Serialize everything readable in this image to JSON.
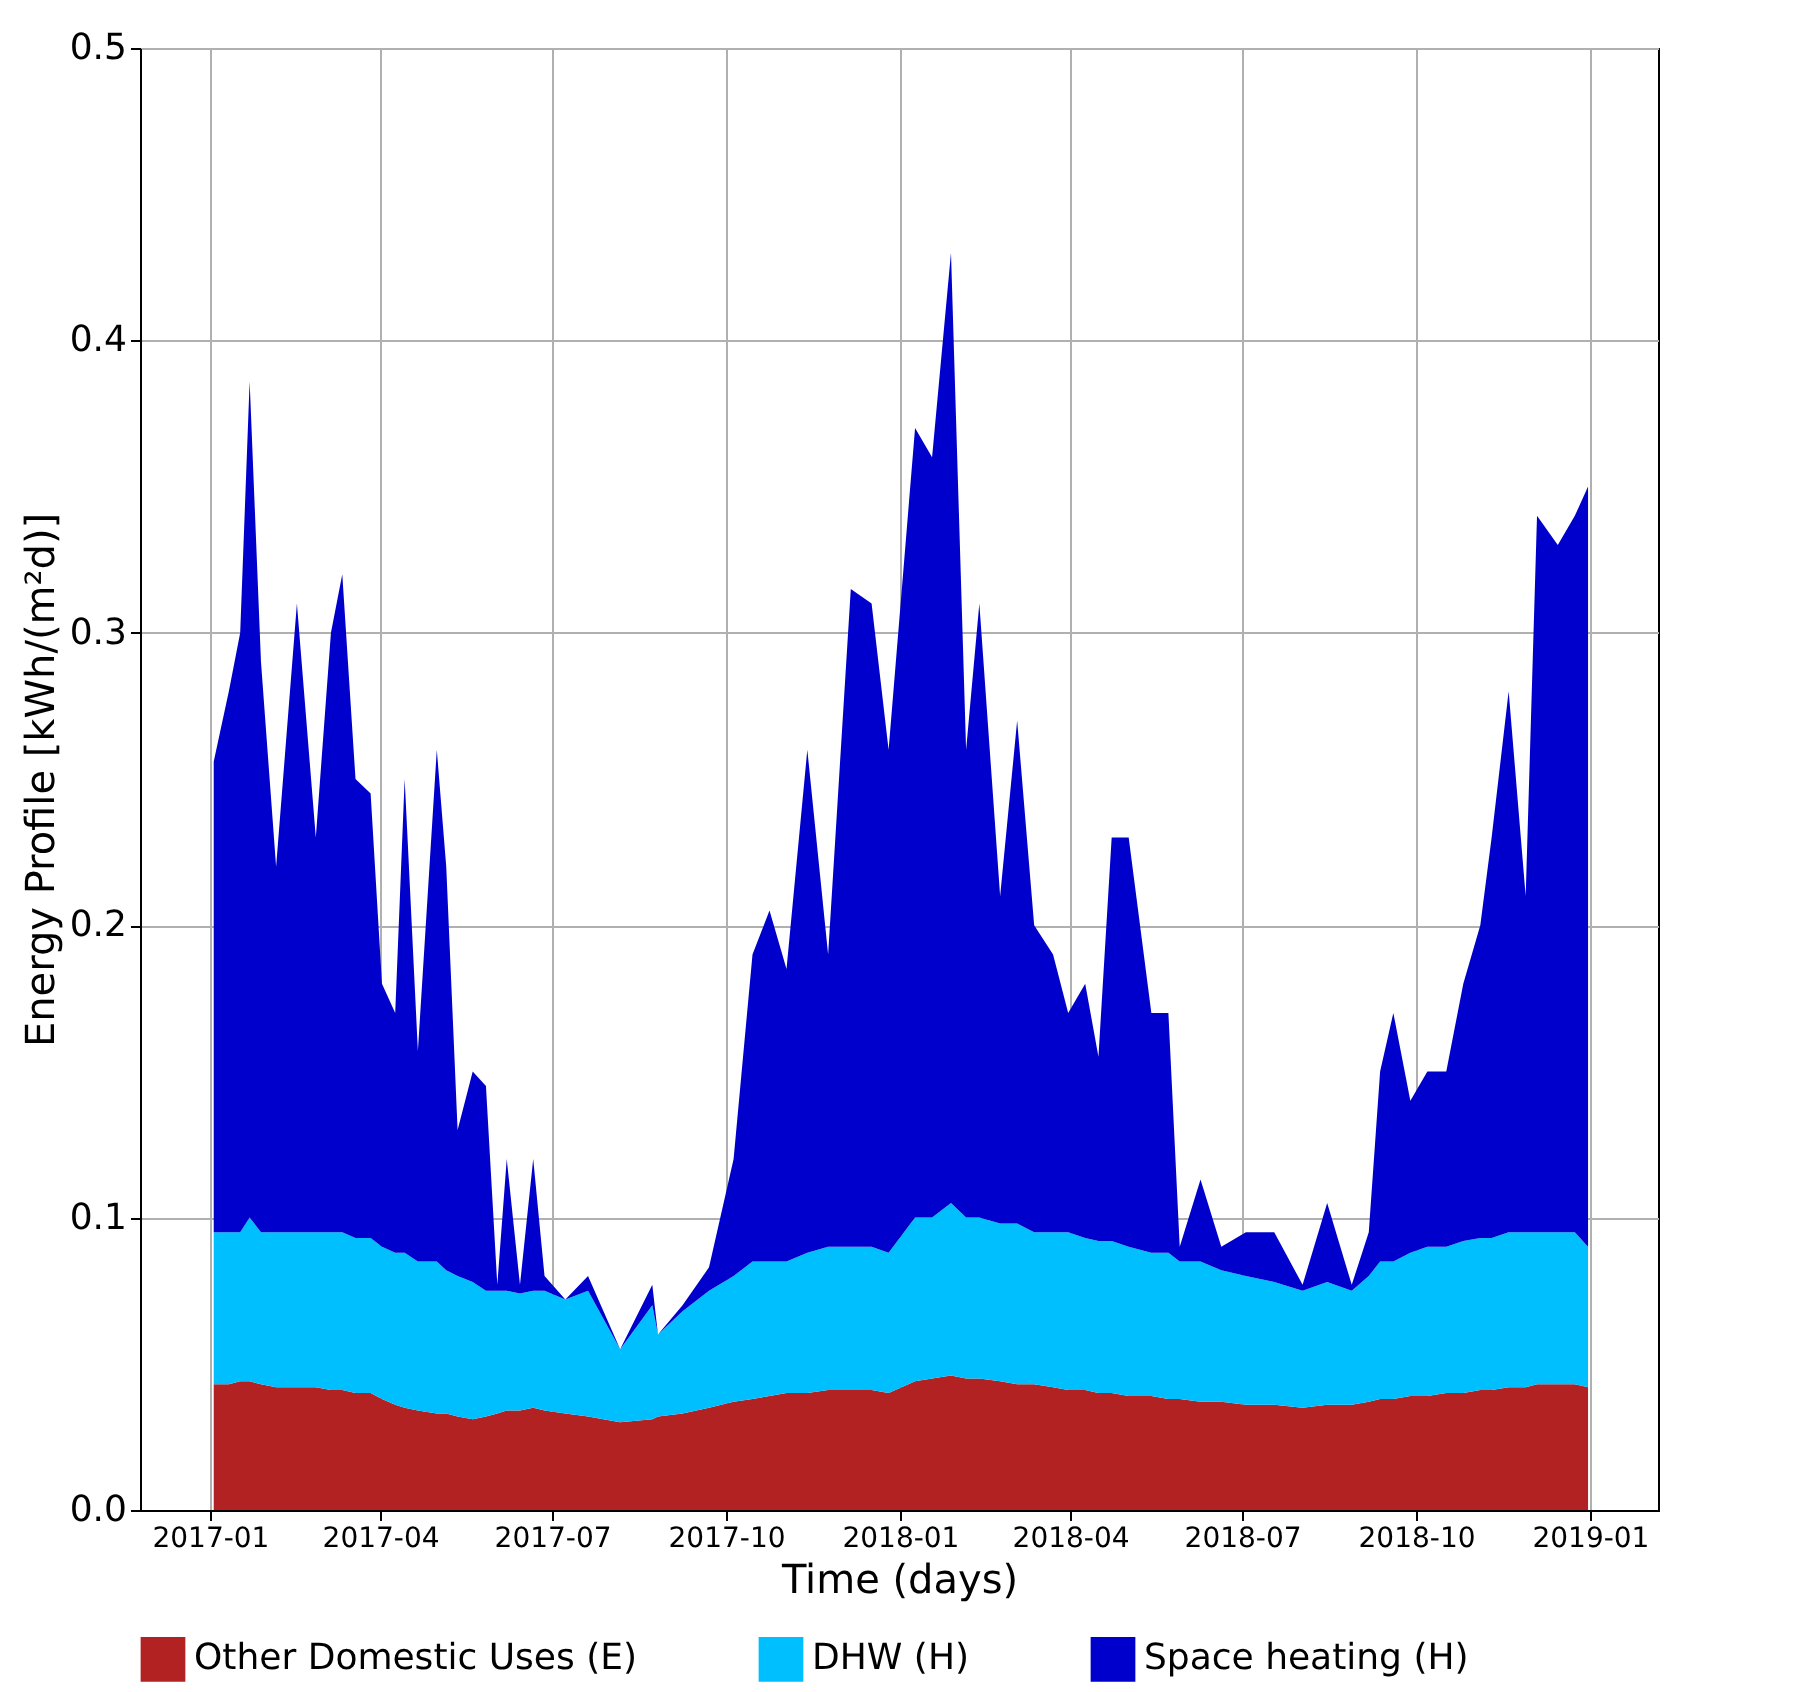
{
  "chart_data": {
    "type": "area",
    "stacked": true,
    "xlabel": "Time (days)",
    "ylabel": "Energy Profile [kWh/(m²d)]",
    "x": [
      "2017-01-03",
      "2017-01-11",
      "2017-01-17",
      "2017-01-22",
      "2017-01-28",
      "2017-02-05",
      "2017-02-16",
      "2017-02-26",
      "2017-03-06",
      "2017-03-12",
      "2017-03-19",
      "2017-03-27",
      "2017-04-02",
      "2017-04-09",
      "2017-04-14",
      "2017-04-21",
      "2017-05-01",
      "2017-05-06",
      "2017-05-12",
      "2017-05-20",
      "2017-05-27",
      "2017-06-02",
      "2017-06-07",
      "2017-06-14",
      "2017-06-21",
      "2017-06-27",
      "2017-07-08",
      "2017-07-20",
      "2017-08-06",
      "2017-08-23",
      "2017-08-26",
      "2017-09-08",
      "2017-09-22",
      "2017-10-05",
      "2017-10-15",
      "2017-10-24",
      "2017-11-02",
      "2017-11-13",
      "2017-11-24",
      "2017-12-06",
      "2017-12-17",
      "2017-12-26",
      "2018-01-09",
      "2018-01-18",
      "2018-01-28",
      "2018-02-05",
      "2018-02-12",
      "2018-02-23",
      "2018-03-04",
      "2018-03-13",
      "2018-03-23",
      "2018-03-31",
      "2018-04-09",
      "2018-04-16",
      "2018-04-23",
      "2018-05-02",
      "2018-05-14",
      "2018-05-23",
      "2018-05-29",
      "2018-06-09",
      "2018-06-20",
      "2018-07-03",
      "2018-07-18",
      "2018-08-02",
      "2018-08-15",
      "2018-08-28",
      "2018-09-06",
      "2018-09-12",
      "2018-09-19",
      "2018-09-28",
      "2018-10-07",
      "2018-10-17",
      "2018-10-26",
      "2018-11-04",
      "2018-11-10",
      "2018-11-19",
      "2018-11-28",
      "2018-12-04",
      "2018-12-15",
      "2018-12-24",
      "2018-12-31"
    ],
    "series": [
      {
        "name": "Other Domestic Uses (E)",
        "color": "#b22222",
        "values": [
          0.043,
          0.043,
          0.044,
          0.044,
          0.043,
          0.042,
          0.042,
          0.042,
          0.041,
          0.041,
          0.04,
          0.04,
          0.038,
          0.036,
          0.035,
          0.034,
          0.033,
          0.033,
          0.032,
          0.031,
          0.032,
          0.033,
          0.034,
          0.034,
          0.035,
          0.034,
          0.033,
          0.032,
          0.03,
          0.031,
          0.032,
          0.033,
          0.035,
          0.037,
          0.038,
          0.039,
          0.04,
          0.04,
          0.041,
          0.041,
          0.041,
          0.04,
          0.044,
          0.045,
          0.046,
          0.045,
          0.045,
          0.044,
          0.043,
          0.043,
          0.042,
          0.041,
          0.041,
          0.04,
          0.04,
          0.039,
          0.039,
          0.038,
          0.038,
          0.037,
          0.037,
          0.036,
          0.036,
          0.035,
          0.036,
          0.036,
          0.037,
          0.038,
          0.038,
          0.039,
          0.039,
          0.04,
          0.04,
          0.041,
          0.041,
          0.042,
          0.042,
          0.043,
          0.043,
          0.043,
          0.042
        ]
      },
      {
        "name": "DHW (H)",
        "color": "#00bfff",
        "values": [
          0.052,
          0.052,
          0.051,
          0.056,
          0.052,
          0.053,
          0.053,
          0.053,
          0.054,
          0.054,
          0.053,
          0.053,
          0.052,
          0.052,
          0.053,
          0.051,
          0.052,
          0.049,
          0.048,
          0.047,
          0.043,
          0.042,
          0.041,
          0.04,
          0.04,
          0.041,
          0.039,
          0.043,
          0.025,
          0.039,
          0.028,
          0.035,
          0.04,
          0.043,
          0.047,
          0.046,
          0.045,
          0.048,
          0.049,
          0.049,
          0.049,
          0.048,
          0.056,
          0.055,
          0.059,
          0.055,
          0.055,
          0.054,
          0.055,
          0.052,
          0.053,
          0.054,
          0.052,
          0.052,
          0.052,
          0.051,
          0.049,
          0.05,
          0.047,
          0.048,
          0.045,
          0.044,
          0.042,
          0.04,
          0.042,
          0.039,
          0.043,
          0.047,
          0.047,
          0.049,
          0.051,
          0.05,
          0.052,
          0.052,
          0.052,
          0.053,
          0.053,
          0.052,
          0.052,
          0.052,
          0.048
        ]
      },
      {
        "name": "Space heating (H)",
        "color": "#0000cd",
        "values": [
          0.161,
          0.185,
          0.205,
          0.286,
          0.195,
          0.125,
          0.215,
          0.135,
          0.205,
          0.225,
          0.157,
          0.152,
          0.09,
          0.082,
          0.162,
          0.072,
          0.175,
          0.138,
          0.05,
          0.072,
          0.07,
          0.002,
          0.045,
          0.003,
          0.045,
          0.005,
          0,
          0.005,
          0,
          0.007,
          0,
          0.002,
          0.008,
          0.04,
          0.105,
          0.12,
          0.1,
          0.172,
          0.1,
          0.225,
          0.22,
          0.172,
          0.27,
          0.26,
          0.325,
          0.16,
          0.21,
          0.112,
          0.172,
          0.105,
          0.095,
          0.075,
          0.087,
          0.063,
          0.138,
          0.14,
          0.082,
          0.082,
          0.005,
          0.028,
          0.008,
          0.015,
          0.017,
          0.002,
          0.027,
          0.002,
          0.015,
          0.065,
          0.085,
          0.052,
          0.06,
          0.06,
          0.088,
          0.107,
          0.137,
          0.185,
          0.115,
          0.245,
          0.235,
          0.245,
          0.26
        ]
      }
    ],
    "xlim": [
      "2016-11-25",
      "2019-02-06"
    ],
    "xticks": [
      "2017-01",
      "2017-04",
      "2017-07",
      "2017-10",
      "2018-01",
      "2018-04",
      "2018-07",
      "2018-10",
      "2019-01"
    ],
    "ylim": [
      0,
      0.5
    ],
    "yticks": [
      {
        "value": 0,
        "label": "0.0"
      },
      {
        "value": 0.1,
        "label": "0.1"
      },
      {
        "value": 0.2,
        "label": "0.2"
      },
      {
        "value": 0.3,
        "label": "0.3"
      },
      {
        "value": 0.4,
        "label": "0.4"
      },
      {
        "value": 0.5,
        "label": "0.5"
      }
    ],
    "grid": true,
    "legend": "bottom"
  }
}
